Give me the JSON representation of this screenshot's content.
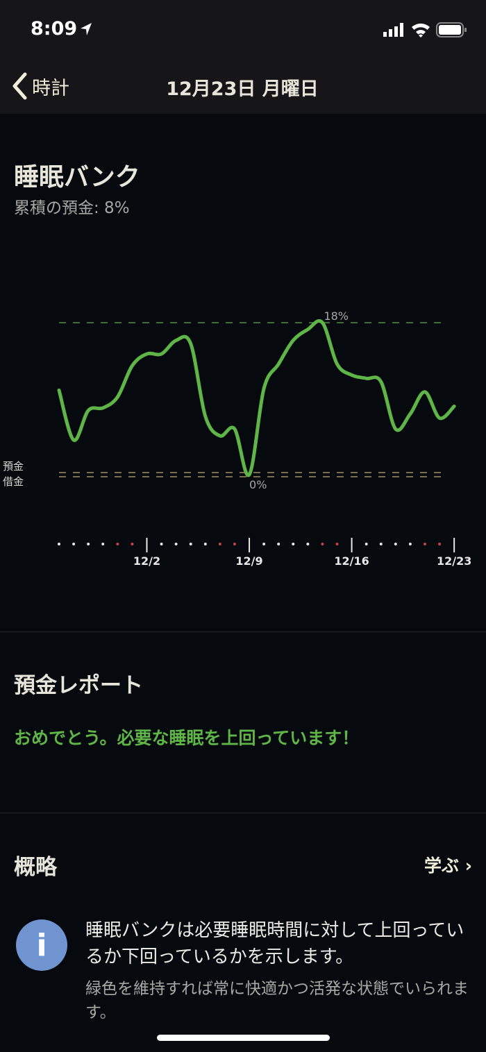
{
  "status_bar": {
    "time": "8:09",
    "icons": [
      "location-arrow-icon",
      "signal-icon",
      "wifi-icon",
      "battery-icon"
    ]
  },
  "nav": {
    "back_label": "時計",
    "title": "12月23日 月曜日"
  },
  "sleep_bank": {
    "title": "睡眠バンク",
    "cumulative": "累積の預金: 8%"
  },
  "chart_data": {
    "type": "line",
    "x": [
      "11/26",
      "11/27",
      "11/28",
      "11/29",
      "11/30",
      "12/1",
      "12/2",
      "12/3",
      "12/4",
      "12/5",
      "12/6",
      "12/7",
      "12/8",
      "12/9",
      "12/10",
      "12/11",
      "12/12",
      "12/13",
      "12/14",
      "12/15",
      "12/16",
      "12/17",
      "12/18",
      "12/19",
      "12/20",
      "12/21",
      "12/22",
      "12/23"
    ],
    "values": [
      10,
      4.1,
      7.6,
      7.9,
      9.2,
      12.9,
      14.3,
      14.3,
      15.9,
      15.5,
      6.9,
      4.6,
      5.4,
      0,
      10.2,
      13.1,
      15.9,
      17.2,
      18,
      13.1,
      11.8,
      11.4,
      11,
      5.4,
      7.2,
      9.8,
      6.7,
      8.1
    ],
    "weekend": [
      false,
      false,
      false,
      false,
      true,
      true,
      false,
      false,
      false,
      false,
      false,
      true,
      true,
      false,
      false,
      false,
      false,
      false,
      true,
      true,
      false,
      false,
      false,
      false,
      false,
      true,
      true,
      false
    ],
    "tick_labels": [
      "12/2",
      "12/9",
      "12/16",
      "12/23"
    ],
    "max_label": "18%",
    "min_label": "0%",
    "ylim": [
      0,
      18
    ],
    "zone_labels": {
      "deposit": "預金",
      "debt": "借金"
    },
    "colors": {
      "line": "#5fb547",
      "max_line": "#3f6e3a",
      "zero_line": "#7a6e52",
      "weekend_dot": "#c8404a",
      "dot": "#e8e8e8"
    }
  },
  "report": {
    "title": "預金レポート",
    "message": "おめでとう。必要な睡眠を上回っています！"
  },
  "overview": {
    "title": "概略",
    "learn_label": "学ぶ ›",
    "text": "睡眠バンクは必要睡眠時間に対して上回っているか下回っているかを示します。",
    "subtext": "緑色を維持すれば常に快適かつ活発な状態でいられます。"
  }
}
